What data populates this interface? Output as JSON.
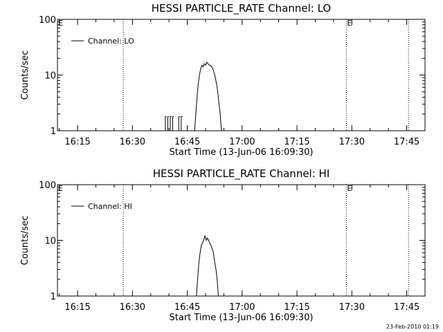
{
  "footer": {
    "timestamp": "23-Feb-2010 01:19"
  },
  "chart_data": [
    {
      "type": "line",
      "title": "HESSI PARTICLE_RATE Channel: LO",
      "xlabel": "Start Time (13-Jun-06 16:09:30)",
      "ylabel": "Counts/sec",
      "yscale": "log",
      "ylim": [
        1,
        100
      ],
      "yticks": [
        1,
        10,
        100
      ],
      "ytick_labels": [
        "1",
        "10",
        "100"
      ],
      "xlim": [
        "16:09:30",
        "17:50:00"
      ],
      "xticks": [
        "16:15",
        "16:30",
        "16:45",
        "17:00",
        "17:15",
        "17:30",
        "17:45"
      ],
      "legend": {
        "position": "top-left",
        "entries": [
          "Channel: LO"
        ]
      },
      "vlines": [
        "16:27:30",
        "17:28:30",
        "17:45:30"
      ],
      "eclipse_markers": [
        {
          "label": "E",
          "time": "16:09:30"
        },
        {
          "label": "E",
          "time": "17:28:30"
        }
      ],
      "series": [
        {
          "name": "Channel: LO",
          "spikes": [
            {
              "x": "16:39:00",
              "y": 1.8
            },
            {
              "x": "16:39:40",
              "y": 1.8
            },
            {
              "x": "16:40:20",
              "y": 1.8
            },
            {
              "x": "16:41:00",
              "y": 1.8
            },
            {
              "x": "16:42:40",
              "y": 1.8
            },
            {
              "x": "16:43:20",
              "y": 1.8
            }
          ],
          "points": [
            {
              "x": "16:47:00",
              "y": 1
            },
            {
              "x": "16:47:20",
              "y": 2
            },
            {
              "x": "16:47:40",
              "y": 4
            },
            {
              "x": "16:48:00",
              "y": 7
            },
            {
              "x": "16:48:20",
              "y": 10
            },
            {
              "x": "16:48:40",
              "y": 13
            },
            {
              "x": "16:49:00",
              "y": 15
            },
            {
              "x": "16:49:20",
              "y": 14
            },
            {
              "x": "16:49:40",
              "y": 16
            },
            {
              "x": "16:50:00",
              "y": 15
            },
            {
              "x": "16:50:20",
              "y": 17
            },
            {
              "x": "16:50:40",
              "y": 16
            },
            {
              "x": "16:51:00",
              "y": 15
            },
            {
              "x": "16:51:20",
              "y": 15
            },
            {
              "x": "16:51:40",
              "y": 14
            },
            {
              "x": "16:52:00",
              "y": 13
            },
            {
              "x": "16:52:20",
              "y": 11
            },
            {
              "x": "16:52:40",
              "y": 9
            },
            {
              "x": "16:53:00",
              "y": 7
            },
            {
              "x": "16:53:20",
              "y": 5
            },
            {
              "x": "16:53:40",
              "y": 3
            },
            {
              "x": "16:54:00",
              "y": 2
            },
            {
              "x": "16:54:20",
              "y": 1
            }
          ]
        }
      ]
    },
    {
      "type": "line",
      "title": "HESSI PARTICLE_RATE Channel: HI",
      "xlabel": "Start Time (13-Jun-06 16:09:30)",
      "ylabel": "Counts/sec",
      "yscale": "log",
      "ylim": [
        1,
        100
      ],
      "yticks": [
        1,
        10,
        100
      ],
      "ytick_labels": [
        "1",
        "10",
        "100"
      ],
      "xlim": [
        "16:09:30",
        "17:50:00"
      ],
      "xticks": [
        "16:15",
        "16:30",
        "16:45",
        "17:00",
        "17:15",
        "17:30",
        "17:45"
      ],
      "legend": {
        "position": "top-left",
        "entries": [
          "Channel: HI"
        ]
      },
      "vlines": [
        "16:27:30",
        "17:28:30",
        "17:45:30"
      ],
      "eclipse_markers": [
        {
          "label": "E",
          "time": "16:09:30"
        },
        {
          "label": "E",
          "time": "17:28:30"
        }
      ],
      "series": [
        {
          "name": "Channel: HI",
          "spikes": [],
          "points": [
            {
              "x": "16:47:30",
              "y": 1
            },
            {
              "x": "16:47:50",
              "y": 2
            },
            {
              "x": "16:48:10",
              "y": 4
            },
            {
              "x": "16:48:30",
              "y": 6
            },
            {
              "x": "16:48:50",
              "y": 8
            },
            {
              "x": "16:49:10",
              "y": 9
            },
            {
              "x": "16:49:30",
              "y": 10
            },
            {
              "x": "16:49:50",
              "y": 12
            },
            {
              "x": "16:50:10",
              "y": 10
            },
            {
              "x": "16:50:30",
              "y": 11
            },
            {
              "x": "16:50:50",
              "y": 10
            },
            {
              "x": "16:51:10",
              "y": 9
            },
            {
              "x": "16:51:30",
              "y": 8
            },
            {
              "x": "16:51:50",
              "y": 7
            },
            {
              "x": "16:52:10",
              "y": 6
            },
            {
              "x": "16:52:30",
              "y": 4
            },
            {
              "x": "16:52:50",
              "y": 3
            },
            {
              "x": "16:53:10",
              "y": 2
            },
            {
              "x": "16:53:30",
              "y": 1
            }
          ]
        }
      ]
    }
  ]
}
